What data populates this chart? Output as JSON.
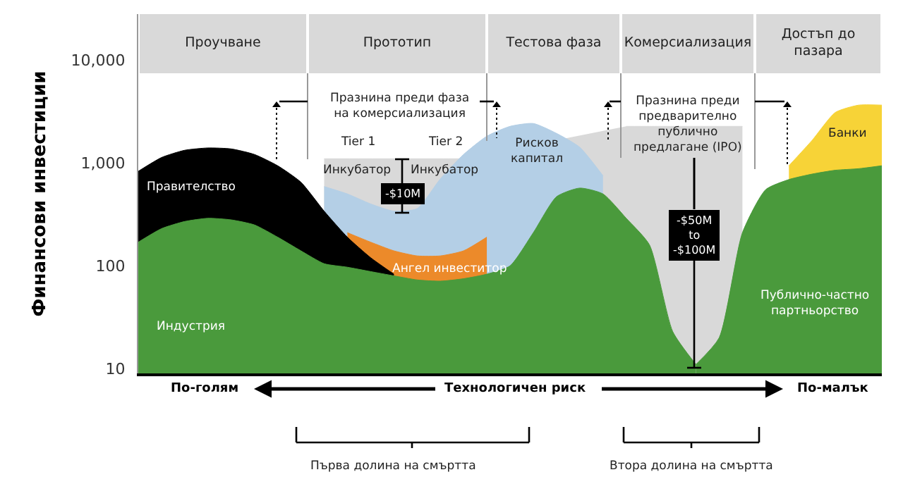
{
  "chart_data": {
    "type": "area",
    "ylabel": "Финансови инвестиции",
    "categories": [
      null,
      null,
      null,
      null,
      null,
      null,
      null,
      null,
      null,
      null,
      null,
      null,
      null,
      null,
      null,
      null,
      null,
      null,
      null,
      null,
      null,
      null,
      null,
      null,
      null,
      null,
      null,
      null,
      null,
      null,
      null,
      null,
      null
    ],
    "series": [
      {
        "color": "#d9d9d9",
        "values": [
          null,
          null,
          null,
          null,
          null,
          null,
          null,
          null,
          1100,
          1100,
          1100,
          1100,
          1100,
          1100,
          1100,
          null,
          null,
          null,
          null,
          null,
          null,
          2270,
          2270,
          2270,
          2270,
          2270,
          2270,
          null,
          null,
          null,
          null,
          null,
          null
        ]
      },
      {
        "name": "Банки",
        "color": "#f7d337",
        "values": [
          null,
          null,
          null,
          null,
          null,
          null,
          null,
          null,
          null,
          null,
          null,
          null,
          null,
          null,
          null,
          null,
          null,
          null,
          null,
          null,
          null,
          null,
          null,
          null,
          null,
          null,
          null,
          null,
          940,
          1660,
          3100,
          3650,
          3650
        ]
      },
      {
        "name": "Рисков\nкапитал",
        "color": "#b4cfe6",
        "values": [
          null,
          null,
          null,
          null,
          null,
          null,
          null,
          null,
          590,
          500,
          400,
          340,
          360,
          700,
          1210,
          1820,
          2270,
          2420,
          1940,
          1420,
          750,
          null,
          null,
          null,
          null,
          null,
          null,
          null,
          null,
          null,
          null,
          null,
          null
        ]
      },
      {
        "name": "Ангел инвеститор",
        "color": "#ec8a2a",
        "values": [
          null,
          null,
          null,
          null,
          null,
          null,
          null,
          null,
          null,
          210,
          170,
          140,
          125,
          125,
          140,
          190,
          null,
          null,
          null,
          null,
          null,
          null,
          null,
          null,
          null,
          null,
          null,
          null,
          null,
          null,
          null,
          null,
          null
        ]
      },
      {
        "name": "Правителство",
        "color": "#000000",
        "values": [
          830,
          1130,
          1330,
          1400,
          1370,
          1210,
          940,
          650,
          340,
          190,
          120,
          83,
          null,
          null,
          null,
          null,
          null,
          null,
          null,
          null,
          null,
          null,
          null,
          null,
          null,
          null,
          null,
          null,
          null,
          null,
          null,
          null,
          null
        ]
      },
      {
        "name": "Индустрия",
        "color": "#4a9a3c",
        "values": [
          170,
          230,
          270,
          290,
          280,
          250,
          190,
          140,
          105,
          97,
          88,
          80,
          73,
          71,
          75,
          83,
          100,
          210,
          470,
          570,
          500,
          290,
          160,
          23,
          11,
          null,
          null,
          null,
          null,
          null,
          null,
          null,
          null
        ]
      },
      {
        "name": "Публично-частно\nпартньорство",
        "color": "#4a9a3c",
        "values": [
          null,
          null,
          null,
          null,
          null,
          null,
          null,
          null,
          null,
          null,
          null,
          null,
          null,
          null,
          null,
          null,
          null,
          null,
          null,
          null,
          null,
          null,
          null,
          null,
          11,
          20,
          210,
          550,
          690,
          780,
          850,
          880,
          940
        ]
      }
    ],
    "log": true,
    "ylim": [
      9,
      28000
    ],
    "yticks": [
      10,
      100,
      {
        "value": 1000,
        "label": "1,000"
      },
      {
        "value": 10000,
        "label": "10,000"
      }
    ],
    "tick_labels": "y",
    "grid": false,
    "legend": false,
    "annotations": [
      "Празнина преди фаза\nна комерсиализация",
      "Tier 1",
      "Tier 2",
      "Инкубатор",
      "Инкубатор",
      "-$10M",
      "Празнина преди\nпредварително\nпублично\nпредлагане (IPO)",
      "-$50M\nto\n-$100M",
      "По-голям",
      "Технологичен риск",
      "По-малък",
      "Първа долина на смъртта",
      "Втора долина на смъртта",
      "Проучване",
      "Прототип",
      "Тестова фаза",
      "Комерсиализация",
      "Достъп до\nпазара"
    ]
  }
}
